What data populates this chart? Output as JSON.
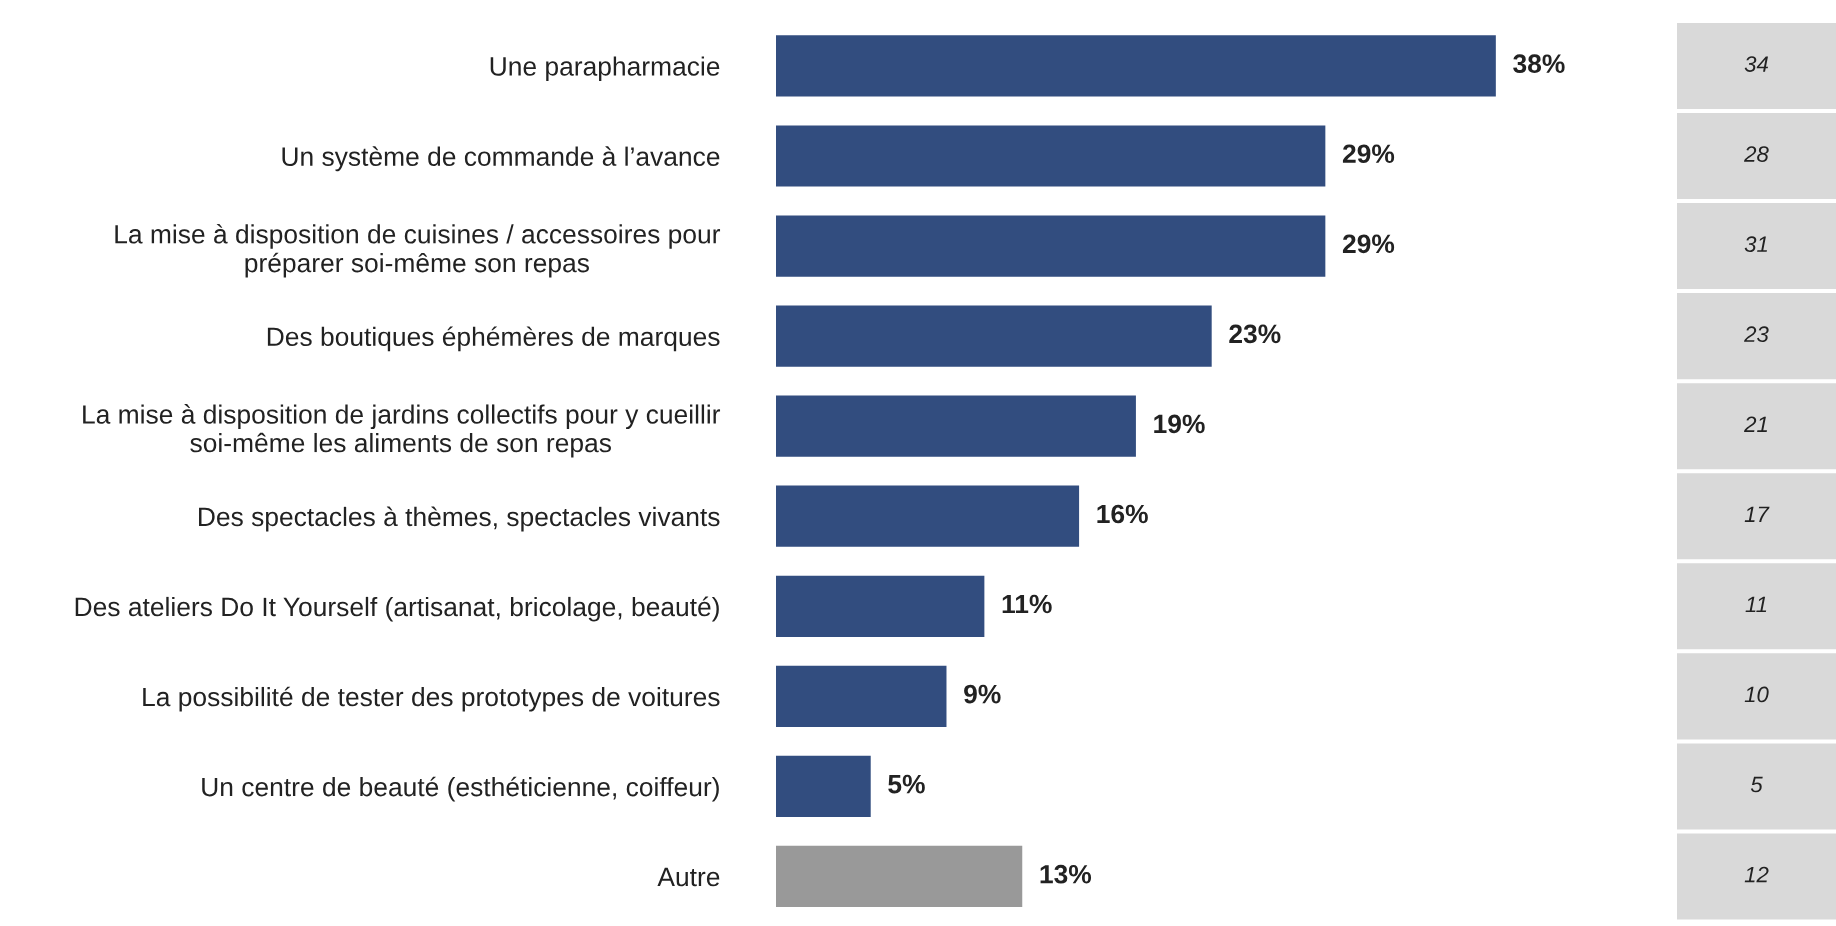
{
  "chart_data": {
    "type": "bar",
    "orientation": "horizontal",
    "categories": [
      "Une parapharmacie",
      "Un système de commande à l’avance",
      "La mise à disposition de cuisines / accessoires pour\npréparer soi-même son repas",
      "Des boutiques éphémères de marques",
      "La mise à disposition de jardins collectifs pour y cueillir\nsoi-même les aliments de son repas",
      "Des spectacles à thèmes, spectacles vivants",
      "Des ateliers Do It Yourself (artisanat, bricolage, beauté)",
      "La possibilité de tester des prototypes de voitures",
      "Un centre de beauté (esthéticienne, coiffeur)",
      "Autre"
    ],
    "values": [
      38,
      29,
      29,
      23,
      19,
      16,
      11,
      9,
      5,
      13
    ],
    "value_labels": [
      "38%",
      "29%",
      "29%",
      "23%",
      "19%",
      "16%",
      "11%",
      "9%",
      "5%",
      "13%"
    ],
    "colors": [
      "#324d7f",
      "#324d7f",
      "#324d7f",
      "#324d7f",
      "#324d7f",
      "#324d7f",
      "#324d7f",
      "#324d7f",
      "#324d7f",
      "#999999"
    ],
    "annotations": [
      "34",
      "28",
      "31",
      "23",
      "21",
      "17",
      "11",
      "10",
      "5",
      "12"
    ],
    "grid": false,
    "legend": false
  }
}
